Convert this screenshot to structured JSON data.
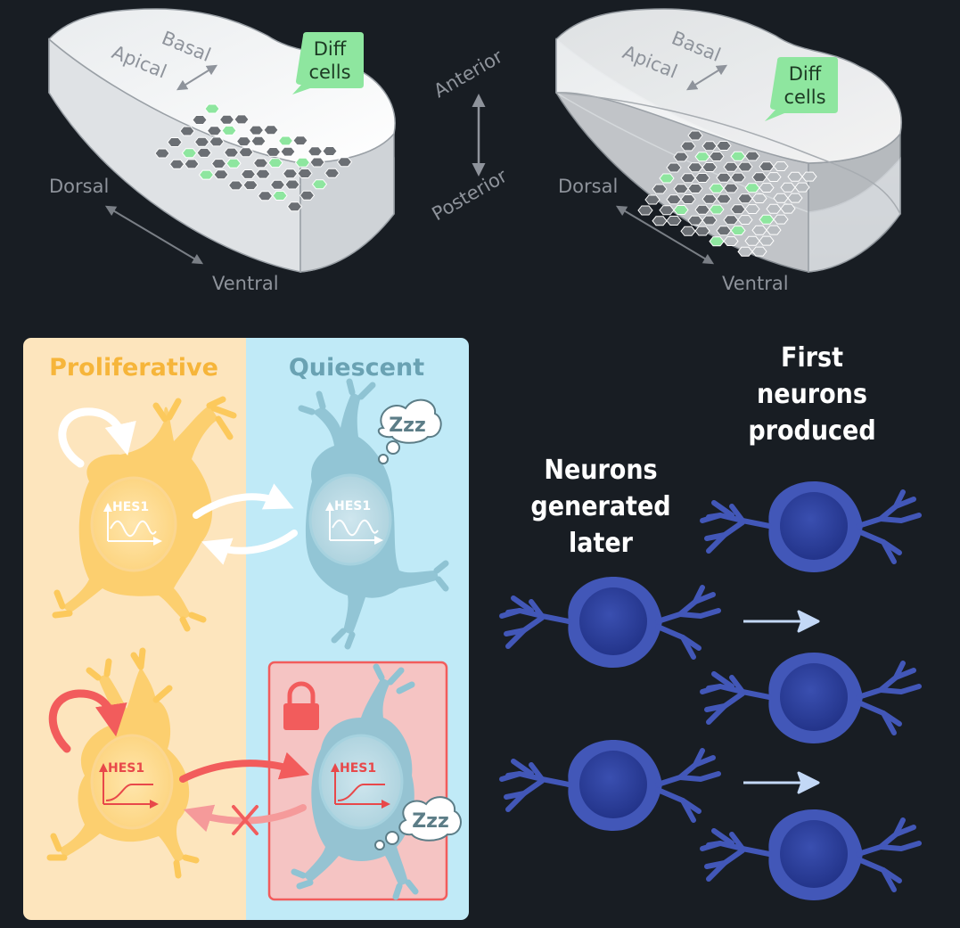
{
  "top_left": {
    "basal": "Basal",
    "apical": "Apical",
    "diff_line1": "Diff",
    "diff_line2": "cells",
    "dorsal": "Dorsal",
    "ventral": "Ventral"
  },
  "axis": {
    "anterior": "Anterior",
    "posterior": "Posterior"
  },
  "top_right": {
    "basal": "Basal",
    "apical": "Apical",
    "diff_line1": "Diff",
    "diff_line2": "cells",
    "dorsal": "Dorsal",
    "ventral": "Ventral"
  },
  "panel": {
    "proliferative": "Proliferative",
    "quiescent": "Quiescent",
    "hes1": "HES1",
    "zzz": "Zzz"
  },
  "right": {
    "first_line1": "First",
    "first_line2": "neurons",
    "first_line3": "produced",
    "later_line1": "Neurons",
    "later_line2": "generated",
    "later_line3": "later"
  },
  "colors": {
    "background": "#181d23",
    "proliferative_bg": "#fde5bd",
    "quiescent_bg": "#c0eaf7",
    "prolif_cell": "#fcc95c",
    "quiescent_cell": "#8fc3d3",
    "locked_box": "#f5c4c3",
    "red_accent": "#f25c5c",
    "neuron": "#4257b8",
    "diff_green": "#8ee69f"
  }
}
